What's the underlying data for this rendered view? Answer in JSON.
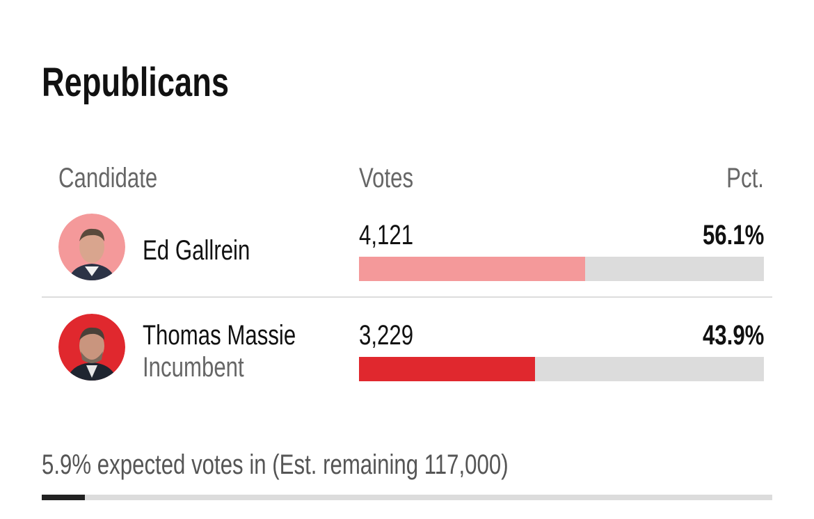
{
  "title": "Republicans",
  "table": {
    "headers": [
      "Candidate",
      "Votes",
      "Pct."
    ],
    "bar_range": [
      0,
      100
    ],
    "candidates": [
      {
        "name": "Ed Gallrein",
        "votes": "4,121",
        "pct": {
          "value": 56.1,
          "label": "56.1%"
        },
        "color": "#f4999a"
      },
      {
        "name": "Thomas Massie",
        "note": "Incumbent",
        "votes": "3,229",
        "pct": {
          "value": 43.9,
          "label": "43.9%"
        },
        "color": "#e0282e"
      }
    ]
  },
  "footer": {
    "reporting": {
      "value": 5.9,
      "label": "5.9%"
    },
    "text": " expected votes in (Est. remaining 117,000)",
    "range": [
      0,
      100
    ],
    "color": "#222222"
  }
}
